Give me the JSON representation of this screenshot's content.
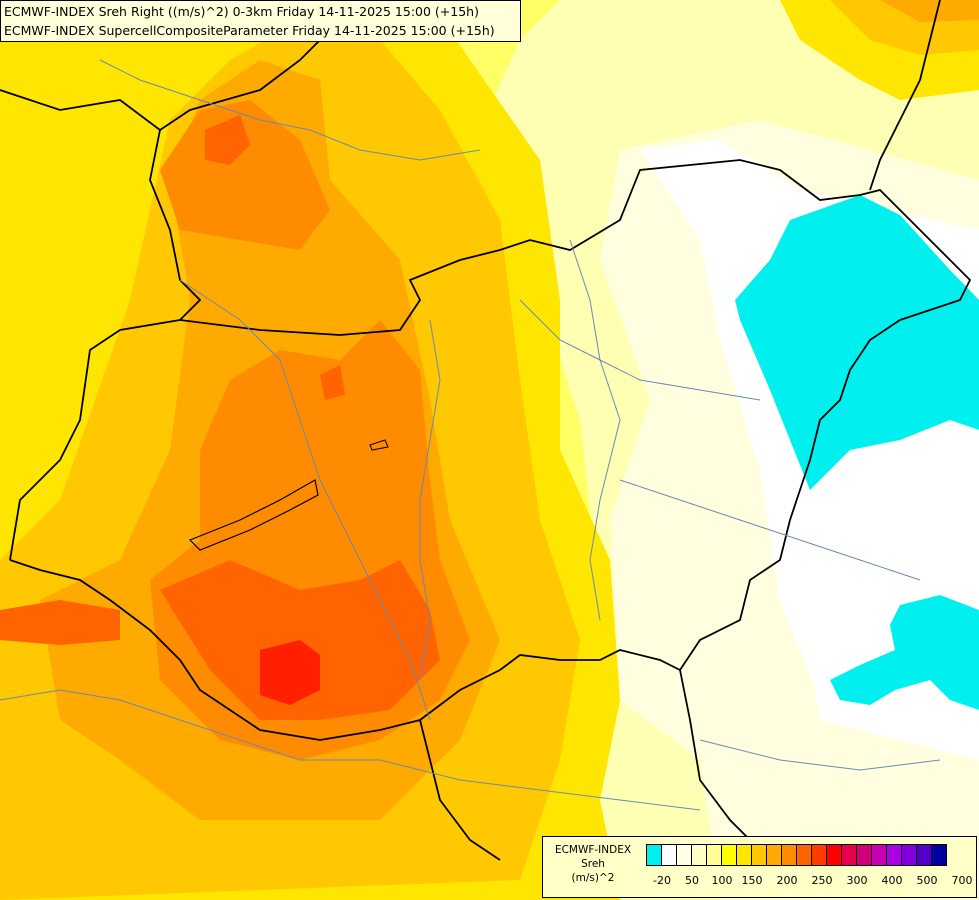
{
  "title": {
    "line1": "ECMWF-INDEX Sreh Right ((m/s)^2) 0-3km Friday 14-11-2025 15:00 (+15h)",
    "line2": "ECMWF-INDEX SupercellCompositeParameter Friday 14-11-2025 15:00 (+15h)"
  },
  "legend": {
    "model": "ECMWF-INDEX",
    "parameter": "Sreh",
    "unit": "(m/s)^2",
    "colors": [
      "#00f0f0",
      "#ffffff",
      "#ffffe6",
      "#ffffc8",
      "#ffff96",
      "#ffff00",
      "#ffe600",
      "#ffc800",
      "#ffaa00",
      "#ff8c00",
      "#ff6400",
      "#ff3c00",
      "#ff0000",
      "#e6004b",
      "#d20078",
      "#c800b4",
      "#aa00e6",
      "#8200dc",
      "#5000c8",
      "#0000a0"
    ],
    "tick_labels": [
      "-20",
      "50",
      "100",
      "150",
      "200",
      "250",
      "300",
      "400",
      "500",
      "700"
    ]
  }
}
